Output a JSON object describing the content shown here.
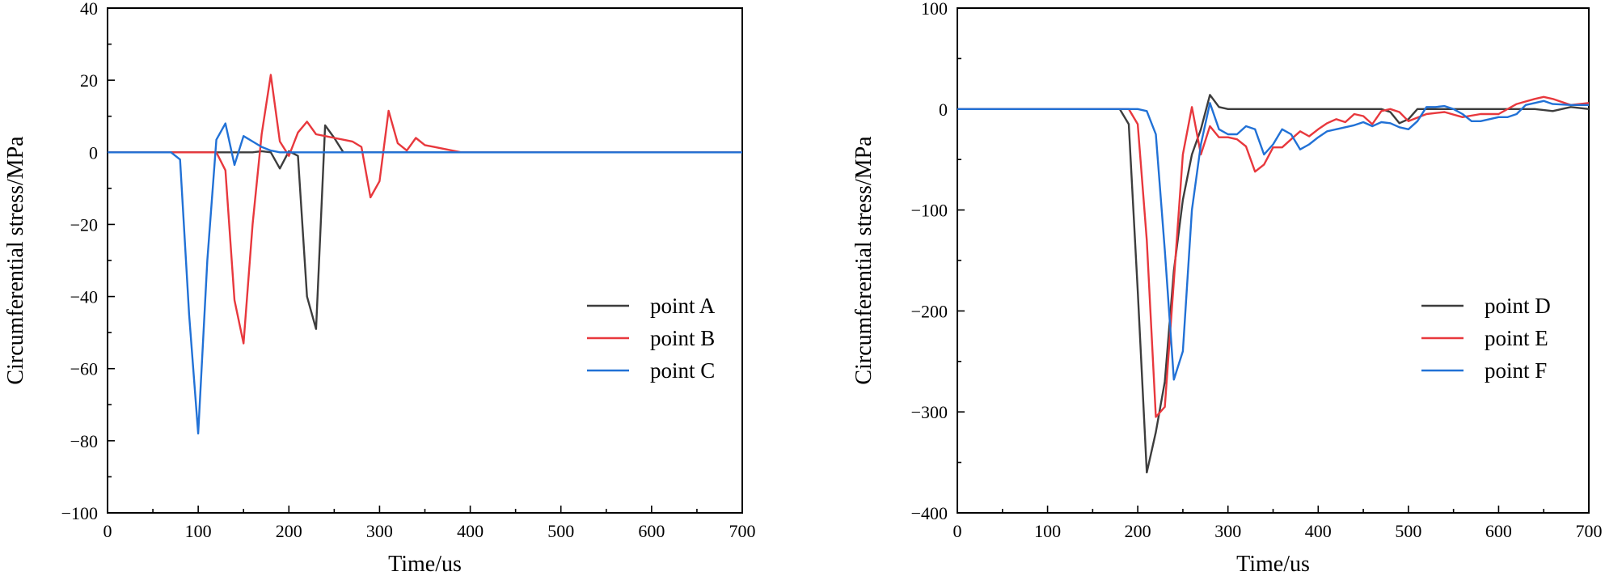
{
  "colors": {
    "black": "#3d3d3d",
    "red": "#e8383d",
    "blue": "#2171d6"
  },
  "chart_data": [
    {
      "type": "line",
      "xlabel": "Time/us",
      "ylabel": "Circumferential stress/MPa",
      "xlim": [
        0,
        700
      ],
      "ylim": [
        -100,
        40
      ],
      "xticks": [
        0,
        100,
        200,
        300,
        400,
        500,
        600,
        700
      ],
      "yticks": [
        40,
        20,
        0,
        -20,
        -40,
        -60,
        -80,
        -100
      ],
      "xtick_labels": [
        "0",
        "100",
        "200",
        "300",
        "400",
        "500",
        "600",
        "700"
      ],
      "ytick_labels": [
        "40",
        "20",
        "0",
        "−20",
        "−40",
        "−60",
        "−80",
        "−100"
      ],
      "legend_position": "right-center",
      "series": [
        {
          "name": "point A",
          "color": "#3d3d3d",
          "x": [
            0,
            100,
            160,
            170,
            180,
            190,
            200,
            210,
            220,
            230,
            240,
            250,
            260,
            700
          ],
          "y": [
            0,
            0,
            0,
            0.3,
            0,
            -4.5,
            0.3,
            -1,
            -40,
            -49,
            7.5,
            4,
            0,
            0
          ]
        },
        {
          "name": "point B",
          "color": "#e8383d",
          "x": [
            0,
            110,
            120,
            130,
            140,
            150,
            160,
            170,
            180,
            190,
            200,
            210,
            220,
            230,
            240,
            250,
            260,
            270,
            280,
            290,
            300,
            310,
            320,
            330,
            340,
            350,
            360,
            370,
            380,
            390,
            400,
            700
          ],
          "y": [
            0,
            0,
            0,
            -5,
            -41,
            -53,
            -20,
            5,
            21.5,
            3,
            -1,
            5.5,
            8.5,
            5,
            4.5,
            4,
            3.5,
            3,
            1.5,
            -12.5,
            -8,
            11.5,
            2.5,
            0.5,
            4,
            2,
            1.5,
            1,
            0.5,
            0,
            0,
            0
          ]
        },
        {
          "name": "point C",
          "color": "#2171d6",
          "x": [
            0,
            70,
            80,
            90,
            100,
            110,
            120,
            130,
            140,
            150,
            160,
            170,
            180,
            190,
            700
          ],
          "y": [
            0,
            0,
            -2,
            -45,
            -78,
            -30,
            3.5,
            8,
            -3.5,
            4.5,
            3,
            1.5,
            0.5,
            0,
            0
          ]
        }
      ]
    },
    {
      "type": "line",
      "xlabel": "Time/us",
      "ylabel": "Circumferential stress/MPa",
      "xlim": [
        0,
        700
      ],
      "ylim": [
        -400,
        100
      ],
      "xticks": [
        0,
        100,
        200,
        300,
        400,
        500,
        600,
        700
      ],
      "yticks": [
        100,
        0,
        -100,
        -200,
        -300,
        -400
      ],
      "xtick_labels": [
        "0",
        "100",
        "200",
        "300",
        "400",
        "500",
        "600",
        "700"
      ],
      "ytick_labels": [
        "100",
        "0",
        "−100",
        "−200",
        "−300",
        "−400"
      ],
      "legend_position": "right-center",
      "series": [
        {
          "name": "point D",
          "color": "#3d3d3d",
          "x": [
            0,
            180,
            190,
            200,
            210,
            220,
            230,
            240,
            250,
            260,
            270,
            280,
            290,
            300,
            470,
            480,
            490,
            500,
            510,
            620,
            640,
            660,
            680,
            700
          ],
          "y": [
            0,
            0,
            -15,
            -180,
            -360,
            -320,
            -270,
            -160,
            -90,
            -45,
            -20,
            14,
            2,
            0,
            0,
            -3,
            -14,
            -10,
            0,
            0,
            0,
            -2,
            2,
            0
          ]
        },
        {
          "name": "point E",
          "color": "#e8383d",
          "x": [
            0,
            190,
            200,
            210,
            220,
            230,
            240,
            250,
            260,
            270,
            280,
            290,
            300,
            310,
            320,
            330,
            340,
            350,
            360,
            370,
            380,
            390,
            400,
            410,
            420,
            430,
            440,
            450,
            460,
            470,
            480,
            490,
            500,
            520,
            540,
            560,
            580,
            600,
            620,
            640,
            650,
            660,
            680,
            700
          ],
          "y": [
            0,
            0,
            -15,
            -130,
            -305,
            -295,
            -170,
            -45,
            2,
            -45,
            -17,
            -28,
            -28,
            -30,
            -37,
            -62,
            -55,
            -38,
            -38,
            -30,
            -22,
            -27,
            -20,
            -14,
            -10,
            -13,
            -5,
            -7,
            -15,
            -2,
            0,
            -3,
            -12,
            -5,
            -3,
            -8,
            -5,
            -5,
            5,
            10,
            12,
            10,
            4,
            6
          ]
        },
        {
          "name": "point F",
          "color": "#2171d6",
          "x": [
            0,
            200,
            210,
            220,
            230,
            240,
            250,
            260,
            270,
            280,
            290,
            300,
            310,
            320,
            330,
            340,
            350,
            360,
            370,
            380,
            390,
            400,
            410,
            420,
            430,
            440,
            450,
            460,
            470,
            480,
            490,
            500,
            510,
            520,
            530,
            540,
            550,
            560,
            570,
            580,
            600,
            610,
            620,
            630,
            640,
            650,
            660,
            680,
            700
          ],
          "y": [
            0,
            0,
            -2,
            -25,
            -140,
            -268,
            -240,
            -100,
            -35,
            6,
            -20,
            -25,
            -25,
            -17,
            -20,
            -45,
            -35,
            -20,
            -25,
            -40,
            -35,
            -28,
            -22,
            -20,
            -18,
            -16,
            -13,
            -17,
            -13,
            -14,
            -18,
            -20,
            -12,
            2,
            2,
            3,
            0,
            -5,
            -12,
            -12,
            -8,
            -8,
            -5,
            4,
            6,
            8,
            5,
            4,
            4
          ]
        }
      ]
    }
  ]
}
